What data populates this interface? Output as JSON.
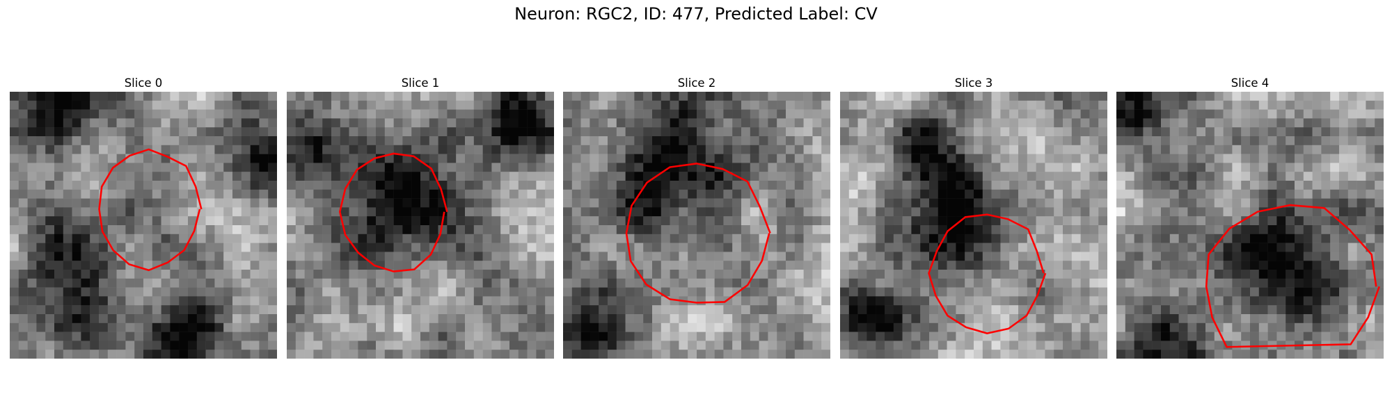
{
  "figure": {
    "title": "Neuron: RGC2, ID: 477, Predicted Label: CV"
  },
  "colors": {
    "contour": "#ff0000"
  },
  "panels": [
    {
      "title": "Slice 0",
      "seed": 11,
      "dark_regions": [
        [
          0.25,
          0.72,
          0.22
        ],
        [
          0.95,
          0.25,
          0.16
        ],
        [
          0.65,
          0.95,
          0.16
        ],
        [
          0.2,
          0.05,
          0.15
        ]
      ],
      "contour_center": [
        0.52,
        0.44
      ],
      "contour_radius": [
        0.38,
        0.44
      ],
      "contour_open": false
    },
    {
      "title": "Slice 1",
      "seed": 23,
      "dark_regions": [
        [
          0.4,
          0.45,
          0.22
        ],
        [
          0.85,
          0.12,
          0.18
        ],
        [
          0.12,
          0.2,
          0.12
        ]
      ],
      "contour_center": [
        0.4,
        0.45
      ],
      "contour_radius": [
        0.39,
        0.45
      ],
      "contour_open": false
    },
    {
      "title": "Slice 2",
      "seed": 37,
      "dark_regions": [
        [
          0.38,
          0.33,
          0.26
        ],
        [
          0.12,
          0.9,
          0.12
        ]
      ],
      "contour_center": [
        0.5,
        0.53
      ],
      "contour_radius": [
        0.53,
        0.54
      ],
      "contour_open": false
    },
    {
      "title": "Slice 3",
      "seed": 41,
      "dark_regions": [
        [
          0.45,
          0.5,
          0.22
        ],
        [
          0.3,
          0.2,
          0.15
        ],
        [
          0.1,
          0.85,
          0.12
        ]
      ],
      "contour_center": [
        0.55,
        0.68
      ],
      "contour_radius": [
        0.42,
        0.45
      ],
      "contour_open": false
    },
    {
      "title": "Slice 4",
      "seed": 59,
      "dark_regions": [
        [
          0.63,
          0.68,
          0.26
        ],
        [
          0.1,
          0.08,
          0.15
        ],
        [
          0.15,
          0.95,
          0.15
        ]
      ],
      "contour_center": [
        0.65,
        0.73
      ],
      "contour_radius": [
        0.65,
        0.62
      ],
      "contour_open": true
    }
  ]
}
